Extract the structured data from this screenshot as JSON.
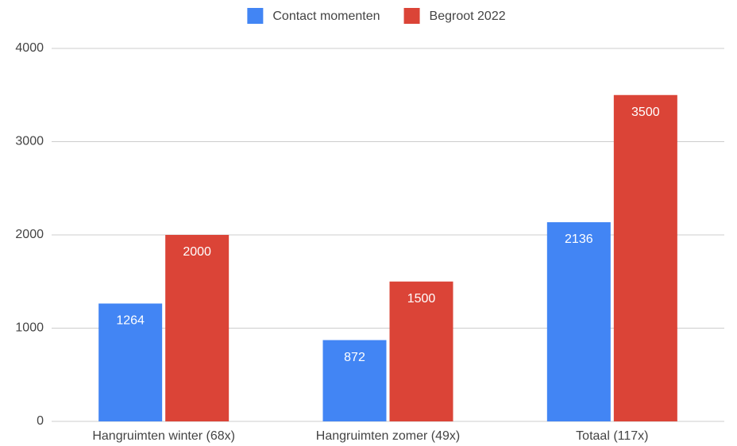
{
  "chart_data": {
    "type": "bar",
    "categories": [
      "Hangruimten winter (68x)",
      "Hangruimten zomer (49x)",
      "Totaal (117x)"
    ],
    "series": [
      {
        "name": "Contact momenten",
        "color": "#4285f4",
        "values": [
          1264,
          872,
          2136
        ]
      },
      {
        "name": "Begroot 2022",
        "color": "#db4437",
        "values": [
          2000,
          1500,
          3500
        ]
      }
    ],
    "ylim": [
      0,
      4000
    ],
    "yticks": [
      0,
      1000,
      2000,
      3000,
      4000
    ],
    "grid": true,
    "legend": "top"
  }
}
